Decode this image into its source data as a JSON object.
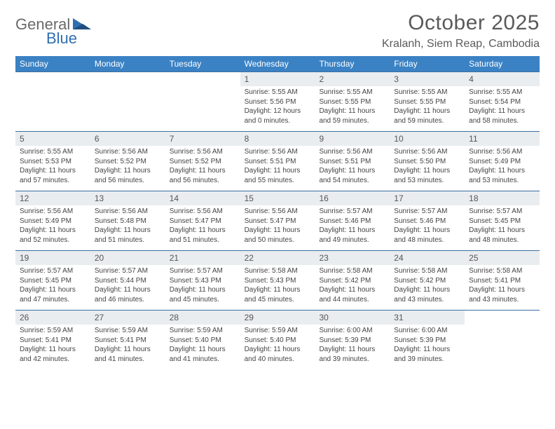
{
  "logo": {
    "text_general": "General",
    "text_blue": "Blue",
    "gray": "#6a6a6a",
    "blue": "#2f6fb0"
  },
  "title": "October 2025",
  "location": "Kralanh, Siem Reap, Cambodia",
  "colors": {
    "header_bg": "#3b82c4",
    "header_text": "#ffffff",
    "daynum_bg": "#e9edf0",
    "row_border": "#3b6fa0"
  },
  "weekdays": [
    "Sunday",
    "Monday",
    "Tuesday",
    "Wednesday",
    "Thursday",
    "Friday",
    "Saturday"
  ],
  "weeks": [
    [
      {
        "n": ""
      },
      {
        "n": ""
      },
      {
        "n": ""
      },
      {
        "n": "1",
        "sr": "Sunrise: 5:55 AM",
        "ss": "Sunset: 5:56 PM",
        "d1": "Daylight: 12 hours",
        "d2": "and 0 minutes."
      },
      {
        "n": "2",
        "sr": "Sunrise: 5:55 AM",
        "ss": "Sunset: 5:55 PM",
        "d1": "Daylight: 11 hours",
        "d2": "and 59 minutes."
      },
      {
        "n": "3",
        "sr": "Sunrise: 5:55 AM",
        "ss": "Sunset: 5:55 PM",
        "d1": "Daylight: 11 hours",
        "d2": "and 59 minutes."
      },
      {
        "n": "4",
        "sr": "Sunrise: 5:55 AM",
        "ss": "Sunset: 5:54 PM",
        "d1": "Daylight: 11 hours",
        "d2": "and 58 minutes."
      }
    ],
    [
      {
        "n": "5",
        "sr": "Sunrise: 5:55 AM",
        "ss": "Sunset: 5:53 PM",
        "d1": "Daylight: 11 hours",
        "d2": "and 57 minutes."
      },
      {
        "n": "6",
        "sr": "Sunrise: 5:56 AM",
        "ss": "Sunset: 5:52 PM",
        "d1": "Daylight: 11 hours",
        "d2": "and 56 minutes."
      },
      {
        "n": "7",
        "sr": "Sunrise: 5:56 AM",
        "ss": "Sunset: 5:52 PM",
        "d1": "Daylight: 11 hours",
        "d2": "and 56 minutes."
      },
      {
        "n": "8",
        "sr": "Sunrise: 5:56 AM",
        "ss": "Sunset: 5:51 PM",
        "d1": "Daylight: 11 hours",
        "d2": "and 55 minutes."
      },
      {
        "n": "9",
        "sr": "Sunrise: 5:56 AM",
        "ss": "Sunset: 5:51 PM",
        "d1": "Daylight: 11 hours",
        "d2": "and 54 minutes."
      },
      {
        "n": "10",
        "sr": "Sunrise: 5:56 AM",
        "ss": "Sunset: 5:50 PM",
        "d1": "Daylight: 11 hours",
        "d2": "and 53 minutes."
      },
      {
        "n": "11",
        "sr": "Sunrise: 5:56 AM",
        "ss": "Sunset: 5:49 PM",
        "d1": "Daylight: 11 hours",
        "d2": "and 53 minutes."
      }
    ],
    [
      {
        "n": "12",
        "sr": "Sunrise: 5:56 AM",
        "ss": "Sunset: 5:49 PM",
        "d1": "Daylight: 11 hours",
        "d2": "and 52 minutes."
      },
      {
        "n": "13",
        "sr": "Sunrise: 5:56 AM",
        "ss": "Sunset: 5:48 PM",
        "d1": "Daylight: 11 hours",
        "d2": "and 51 minutes."
      },
      {
        "n": "14",
        "sr": "Sunrise: 5:56 AM",
        "ss": "Sunset: 5:47 PM",
        "d1": "Daylight: 11 hours",
        "d2": "and 51 minutes."
      },
      {
        "n": "15",
        "sr": "Sunrise: 5:56 AM",
        "ss": "Sunset: 5:47 PM",
        "d1": "Daylight: 11 hours",
        "d2": "and 50 minutes."
      },
      {
        "n": "16",
        "sr": "Sunrise: 5:57 AM",
        "ss": "Sunset: 5:46 PM",
        "d1": "Daylight: 11 hours",
        "d2": "and 49 minutes."
      },
      {
        "n": "17",
        "sr": "Sunrise: 5:57 AM",
        "ss": "Sunset: 5:46 PM",
        "d1": "Daylight: 11 hours",
        "d2": "and 48 minutes."
      },
      {
        "n": "18",
        "sr": "Sunrise: 5:57 AM",
        "ss": "Sunset: 5:45 PM",
        "d1": "Daylight: 11 hours",
        "d2": "and 48 minutes."
      }
    ],
    [
      {
        "n": "19",
        "sr": "Sunrise: 5:57 AM",
        "ss": "Sunset: 5:45 PM",
        "d1": "Daylight: 11 hours",
        "d2": "and 47 minutes."
      },
      {
        "n": "20",
        "sr": "Sunrise: 5:57 AM",
        "ss": "Sunset: 5:44 PM",
        "d1": "Daylight: 11 hours",
        "d2": "and 46 minutes."
      },
      {
        "n": "21",
        "sr": "Sunrise: 5:57 AM",
        "ss": "Sunset: 5:43 PM",
        "d1": "Daylight: 11 hours",
        "d2": "and 45 minutes."
      },
      {
        "n": "22",
        "sr": "Sunrise: 5:58 AM",
        "ss": "Sunset: 5:43 PM",
        "d1": "Daylight: 11 hours",
        "d2": "and 45 minutes."
      },
      {
        "n": "23",
        "sr": "Sunrise: 5:58 AM",
        "ss": "Sunset: 5:42 PM",
        "d1": "Daylight: 11 hours",
        "d2": "and 44 minutes."
      },
      {
        "n": "24",
        "sr": "Sunrise: 5:58 AM",
        "ss": "Sunset: 5:42 PM",
        "d1": "Daylight: 11 hours",
        "d2": "and 43 minutes."
      },
      {
        "n": "25",
        "sr": "Sunrise: 5:58 AM",
        "ss": "Sunset: 5:41 PM",
        "d1": "Daylight: 11 hours",
        "d2": "and 43 minutes."
      }
    ],
    [
      {
        "n": "26",
        "sr": "Sunrise: 5:59 AM",
        "ss": "Sunset: 5:41 PM",
        "d1": "Daylight: 11 hours",
        "d2": "and 42 minutes."
      },
      {
        "n": "27",
        "sr": "Sunrise: 5:59 AM",
        "ss": "Sunset: 5:41 PM",
        "d1": "Daylight: 11 hours",
        "d2": "and 41 minutes."
      },
      {
        "n": "28",
        "sr": "Sunrise: 5:59 AM",
        "ss": "Sunset: 5:40 PM",
        "d1": "Daylight: 11 hours",
        "d2": "and 41 minutes."
      },
      {
        "n": "29",
        "sr": "Sunrise: 5:59 AM",
        "ss": "Sunset: 5:40 PM",
        "d1": "Daylight: 11 hours",
        "d2": "and 40 minutes."
      },
      {
        "n": "30",
        "sr": "Sunrise: 6:00 AM",
        "ss": "Sunset: 5:39 PM",
        "d1": "Daylight: 11 hours",
        "d2": "and 39 minutes."
      },
      {
        "n": "31",
        "sr": "Sunrise: 6:00 AM",
        "ss": "Sunset: 5:39 PM",
        "d1": "Daylight: 11 hours",
        "d2": "and 39 minutes."
      },
      {
        "n": ""
      }
    ]
  ]
}
